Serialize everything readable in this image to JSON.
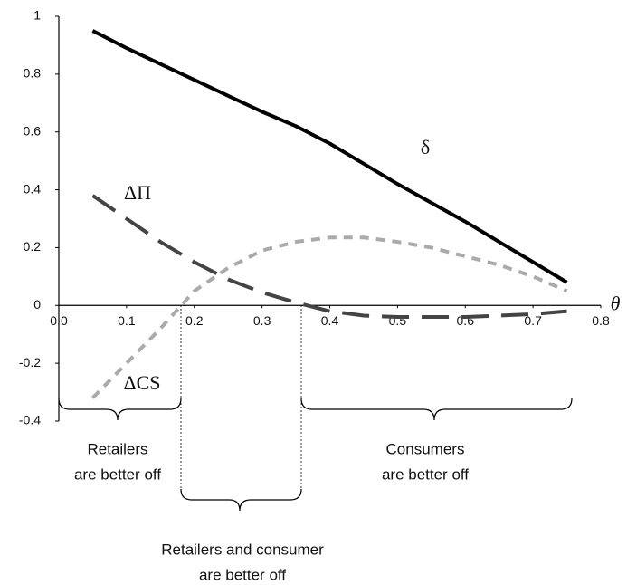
{
  "chart_data": {
    "type": "line",
    "x_label": "θ",
    "x": [
      0.05,
      0.1,
      0.15,
      0.2,
      0.25,
      0.3,
      0.35,
      0.4,
      0.45,
      0.5,
      0.55,
      0.6,
      0.65,
      0.7,
      0.75
    ],
    "series": [
      {
        "name": "δ",
        "color": "#000000",
        "values": [
          0.95,
          0.89,
          0.835,
          0.78,
          0.725,
          0.67,
          0.62,
          0.56,
          0.49,
          0.42,
          0.355,
          0.29,
          0.22,
          0.15,
          0.08
        ]
      },
      {
        "name": "ΔΠ",
        "color": "#444444",
        "values": [
          0.38,
          0.3,
          0.22,
          0.15,
          0.09,
          0.045,
          0.01,
          -0.02,
          -0.035,
          -0.04,
          -0.04,
          -0.04,
          -0.035,
          -0.03,
          -0.02
        ]
      },
      {
        "name": "ΔCS",
        "color": "#aaaaaa",
        "values": [
          -0.32,
          -0.2,
          -0.08,
          0.05,
          0.13,
          0.19,
          0.22,
          0.235,
          0.235,
          0.22,
          0.2,
          0.17,
          0.14,
          0.1,
          0.05
        ]
      }
    ],
    "xlim": [
      0,
      0.8
    ],
    "xticks": [
      {
        "value": 0,
        "label": "0.0"
      },
      0.1,
      0.2,
      0.3,
      0.4,
      0.5,
      0.6,
      0.7,
      0.8
    ],
    "ylim": [
      -0.4,
      1
    ],
    "yticks": [
      1,
      0.8,
      0.6,
      0.4,
      0.2,
      0,
      -0.2,
      -0.4
    ],
    "annotations": [
      {
        "lines": [
          "Retailers",
          "are better off"
        ]
      },
      {
        "lines": [
          "Retailers and consumer",
          "are better off"
        ]
      },
      {
        "lines": [
          "Consumers",
          "are better off"
        ]
      }
    ]
  }
}
